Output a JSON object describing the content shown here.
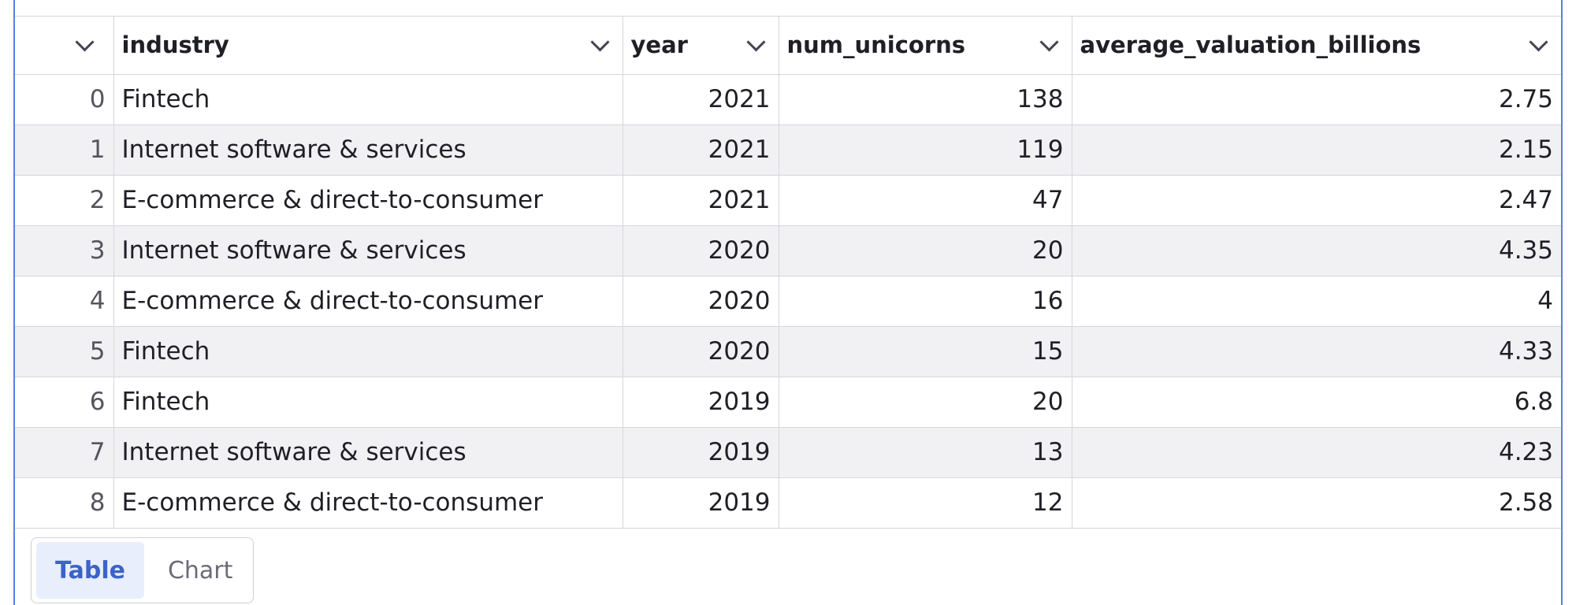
{
  "table": {
    "columns": [
      {
        "key": "index",
        "label": ""
      },
      {
        "key": "industry",
        "label": "industry"
      },
      {
        "key": "year",
        "label": "year"
      },
      {
        "key": "num_unicorns",
        "label": "num_unicorns"
      },
      {
        "key": "average_valuation_billions",
        "label": "average_valuation_billions"
      }
    ],
    "rows": [
      {
        "index": "0",
        "industry": "Fintech",
        "year": "2021",
        "num_unicorns": "138",
        "average_valuation_billions": "2.75"
      },
      {
        "index": "1",
        "industry": "Internet software & services",
        "year": "2021",
        "num_unicorns": "119",
        "average_valuation_billions": "2.15"
      },
      {
        "index": "2",
        "industry": "E-commerce & direct-to-consumer",
        "year": "2021",
        "num_unicorns": "47",
        "average_valuation_billions": "2.47"
      },
      {
        "index": "3",
        "industry": "Internet software & services",
        "year": "2020",
        "num_unicorns": "20",
        "average_valuation_billions": "4.35"
      },
      {
        "index": "4",
        "industry": "E-commerce & direct-to-consumer",
        "year": "2020",
        "num_unicorns": "16",
        "average_valuation_billions": "4"
      },
      {
        "index": "5",
        "industry": "Fintech",
        "year": "2020",
        "num_unicorns": "15",
        "average_valuation_billions": "4.33"
      },
      {
        "index": "6",
        "industry": "Fintech",
        "year": "2019",
        "num_unicorns": "20",
        "average_valuation_billions": "6.8"
      },
      {
        "index": "7",
        "industry": "Internet software & services",
        "year": "2019",
        "num_unicorns": "13",
        "average_valuation_billions": "4.23"
      },
      {
        "index": "8",
        "industry": "E-commerce & direct-to-consumer",
        "year": "2019",
        "num_unicorns": "12",
        "average_valuation_billions": "2.58"
      }
    ]
  },
  "view_tabs": {
    "table_label": "Table",
    "chart_label": "Chart",
    "active": "Table"
  },
  "icons": {
    "column_menu": "chevron-down-icon"
  },
  "colors": {
    "frame_border": "#5b7fe0",
    "active_tab_bg": "#e8eefc",
    "active_tab_text": "#3b63c8",
    "stripe_row_bg": "#f1f1f4"
  }
}
